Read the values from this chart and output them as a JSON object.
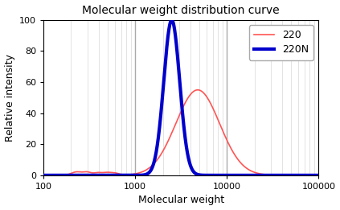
{
  "title": "Molecular weight distribution curve",
  "xlabel": "Molecular weight",
  "ylabel": "Relative intensity",
  "xlim": [
    100,
    100000
  ],
  "ylim": [
    0,
    100
  ],
  "yticks": [
    0,
    20,
    40,
    60,
    80,
    100
  ],
  "color_220": "#ff5555",
  "color_220N": "#0000cc",
  "lw_220": 1.2,
  "lw_220N": 3.0,
  "legend_220": "220",
  "legend_220N": "220N",
  "solid_vlines": [
    1000,
    10000
  ],
  "solid_vline_color": "#aaaaaa",
  "solid_vline_lw": 1.0,
  "minor_grid_color": "#d8d8d8",
  "minor_grid_lw": 0.5,
  "background_color": "#ffffff",
  "fig_bg": "#ffffff",
  "peak_220_mw": 4800,
  "peak_220_sigma": 0.55,
  "peak_220_peak_val": 55,
  "peak_220N_mw": 2500,
  "peak_220N_sigma": 0.2,
  "title_fontsize": 10,
  "label_fontsize": 9,
  "tick_fontsize": 8,
  "legend_fontsize": 9
}
